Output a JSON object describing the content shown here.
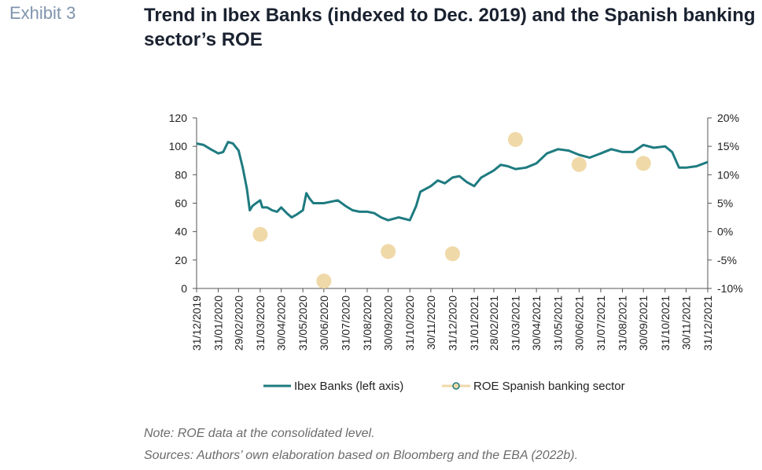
{
  "header": {
    "exhibit": "Exhibit 3",
    "title": "Trend in Ibex Banks (indexed to Dec. 2019) and the Spanish banking sector’s ROE"
  },
  "notes": {
    "note": "Note: ROE data at the consolidated level.",
    "sources": "Sources: Authors’ own elaboration based on Bloomberg and the EBA (2022b)."
  },
  "colors": {
    "line": "#1e7b80",
    "dots": "#f0d9a8",
    "axis": "#555555"
  },
  "chart_data": {
    "type": "line",
    "x_ticks": [
      "31/12/2019",
      "31/01/2020",
      "29/02/2020",
      "31/03/2020",
      "30/04/2020",
      "31/05/2020",
      "30/06/2020",
      "31/07/2020",
      "31/08/2020",
      "30/09/2020",
      "31/10/2020",
      "30/11/2020",
      "31/12/2020",
      "31/01/2021",
      "28/02/2021",
      "31/03/2021",
      "30/04/2021",
      "31/05/2021",
      "30/06/2021",
      "31/07/2021",
      "31/08/2021",
      "30/09/2021",
      "31/10/2021",
      "30/11/2021",
      "31/12/2021"
    ],
    "y_left": {
      "ticks": [
        "0",
        "20",
        "40",
        "60",
        "80",
        "100",
        "120"
      ],
      "range": [
        0,
        120
      ]
    },
    "y_right": {
      "ticks": [
        "-10%",
        "-5%",
        "0%",
        "5%",
        "10%",
        "15%",
        "20%"
      ],
      "range": [
        -10,
        20
      ]
    },
    "legend_placement": "bottom",
    "series": [
      {
        "name": "Ibex Banks (left axis)",
        "axis": "left",
        "points": [
          [
            "31/12/2019",
            102
          ],
          [
            "10/01/2020",
            101
          ],
          [
            "20/01/2020",
            98
          ],
          [
            "31/01/2020",
            95
          ],
          [
            "07/02/2020",
            96
          ],
          [
            "14/02/2020",
            103
          ],
          [
            "21/02/2020",
            102
          ],
          [
            "29/02/2020",
            97
          ],
          [
            "06/03/2020",
            85
          ],
          [
            "12/03/2020",
            70
          ],
          [
            "16/03/2020",
            55
          ],
          [
            "20/03/2020",
            58
          ],
          [
            "25/03/2020",
            60
          ],
          [
            "31/03/2020",
            62
          ],
          [
            "03/04/2020",
            57
          ],
          [
            "10/04/2020",
            57
          ],
          [
            "17/04/2020",
            55
          ],
          [
            "24/04/2020",
            54
          ],
          [
            "30/04/2020",
            57
          ],
          [
            "08/05/2020",
            53
          ],
          [
            "15/05/2020",
            50
          ],
          [
            "22/05/2020",
            52
          ],
          [
            "31/05/2020",
            55
          ],
          [
            "05/06/2020",
            67
          ],
          [
            "10/06/2020",
            63
          ],
          [
            "15/06/2020",
            60
          ],
          [
            "30/06/2020",
            60
          ],
          [
            "10/07/2020",
            61
          ],
          [
            "20/07/2020",
            62
          ],
          [
            "31/07/2020",
            58
          ],
          [
            "10/08/2020",
            55
          ],
          [
            "20/08/2020",
            54
          ],
          [
            "31/08/2020",
            54
          ],
          [
            "10/09/2020",
            53
          ],
          [
            "20/09/2020",
            50
          ],
          [
            "30/09/2020",
            48
          ],
          [
            "15/10/2020",
            50
          ],
          [
            "31/10/2020",
            48
          ],
          [
            "09/11/2020",
            58
          ],
          [
            "15/11/2020",
            68
          ],
          [
            "30/11/2020",
            72
          ],
          [
            "10/12/2020",
            76
          ],
          [
            "20/12/2020",
            74
          ],
          [
            "31/12/2020",
            78
          ],
          [
            "10/01/2021",
            79
          ],
          [
            "20/01/2021",
            75
          ],
          [
            "31/01/2021",
            72
          ],
          [
            "10/02/2021",
            78
          ],
          [
            "28/02/2021",
            83
          ],
          [
            "10/03/2021",
            87
          ],
          [
            "20/03/2021",
            86
          ],
          [
            "31/03/2021",
            84
          ],
          [
            "15/04/2021",
            85
          ],
          [
            "30/04/2021",
            88
          ],
          [
            "15/05/2021",
            95
          ],
          [
            "31/05/2021",
            98
          ],
          [
            "15/06/2021",
            97
          ],
          [
            "30/06/2021",
            94
          ],
          [
            "15/07/2021",
            92
          ],
          [
            "31/07/2021",
            95
          ],
          [
            "15/08/2021",
            98
          ],
          [
            "31/08/2021",
            96
          ],
          [
            "15/09/2021",
            96
          ],
          [
            "30/09/2021",
            101
          ],
          [
            "15/10/2021",
            99
          ],
          [
            "31/10/2021",
            100
          ],
          [
            "10/11/2021",
            96
          ],
          [
            "20/11/2021",
            85
          ],
          [
            "30/11/2021",
            85
          ],
          [
            "15/12/2021",
            86
          ],
          [
            "31/12/2021",
            89
          ]
        ]
      },
      {
        "name": "ROE Spanish banking sector",
        "axis": "right",
        "points": [
          [
            "31/03/2020",
            -0.5
          ],
          [
            "30/06/2020",
            -8.7
          ],
          [
            "30/09/2020",
            -3.5
          ],
          [
            "31/12/2020",
            -3.9
          ],
          [
            "31/03/2021",
            16.2
          ],
          [
            "30/06/2021",
            11.8
          ],
          [
            "30/09/2021",
            12.0
          ]
        ]
      }
    ]
  }
}
